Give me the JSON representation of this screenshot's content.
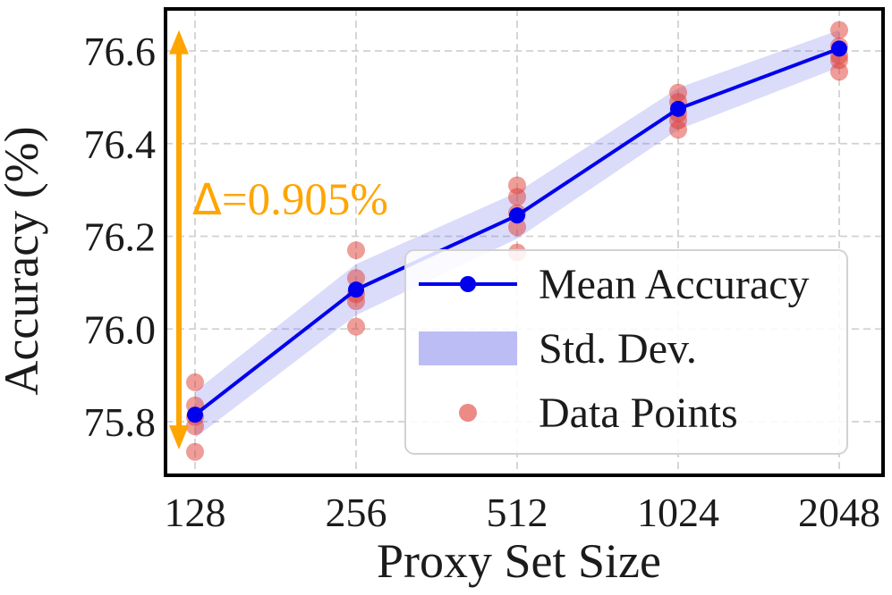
{
  "chart_data": {
    "type": "line",
    "title": "",
    "xlabel": "Proxy Set Size",
    "ylabel": "Accuracy (%)",
    "x_scale": "log2",
    "categories": [
      128,
      256,
      512,
      1024,
      2048
    ],
    "x_tick_labels": [
      "128",
      "256",
      "512",
      "1024",
      "2048"
    ],
    "y_tick_labels": [
      "75.8",
      "76.0",
      "76.2",
      "76.4",
      "76.6"
    ],
    "y_tick_values": [
      75.8,
      76.0,
      76.2,
      76.4,
      76.6
    ],
    "ylim": [
      75.68,
      76.7
    ],
    "grid": {
      "style": "dashed",
      "color": "#d1d1d1"
    },
    "series": [
      {
        "name": "Mean Accuracy",
        "type": "line",
        "color": "#0000ee",
        "values": [
          75.815,
          76.085,
          76.245,
          76.475,
          76.605
        ]
      },
      {
        "name": "Std. Dev.",
        "type": "band",
        "color": "#5a5ae8",
        "opacity": 0.22,
        "std": [
          0.05,
          0.055,
          0.05,
          0.045,
          0.04
        ]
      },
      {
        "name": "Data Points",
        "type": "scatter",
        "color": "#e03c34",
        "opacity": 0.5,
        "groups": [
          [
            75.885,
            75.835,
            75.81,
            75.79,
            75.735
          ],
          [
            76.17,
            76.11,
            76.075,
            76.06,
            76.005
          ],
          [
            76.31,
            76.285,
            76.25,
            76.22,
            76.165
          ],
          [
            76.51,
            76.49,
            76.465,
            76.45,
            76.43
          ],
          [
            76.645,
            76.61,
            76.59,
            76.58,
            76.555
          ]
        ]
      }
    ],
    "annotation": {
      "text": "Δ=0.905%",
      "color": "#ffa500",
      "arrow_span": [
        75.74,
        76.645
      ]
    },
    "legend": {
      "position": "center right",
      "entries": [
        "Mean Accuracy",
        "Std. Dev.",
        "Data Points"
      ]
    }
  },
  "colors": {
    "frame": "#000000",
    "text": "#1b1b1b",
    "grid": "#d1d1d1",
    "mean_line": "#0000ee",
    "band": "#5a5ae8",
    "scatter": "#e03c34",
    "annotation_orange": "#ffa500",
    "legend_border": "#d2d2d2"
  }
}
